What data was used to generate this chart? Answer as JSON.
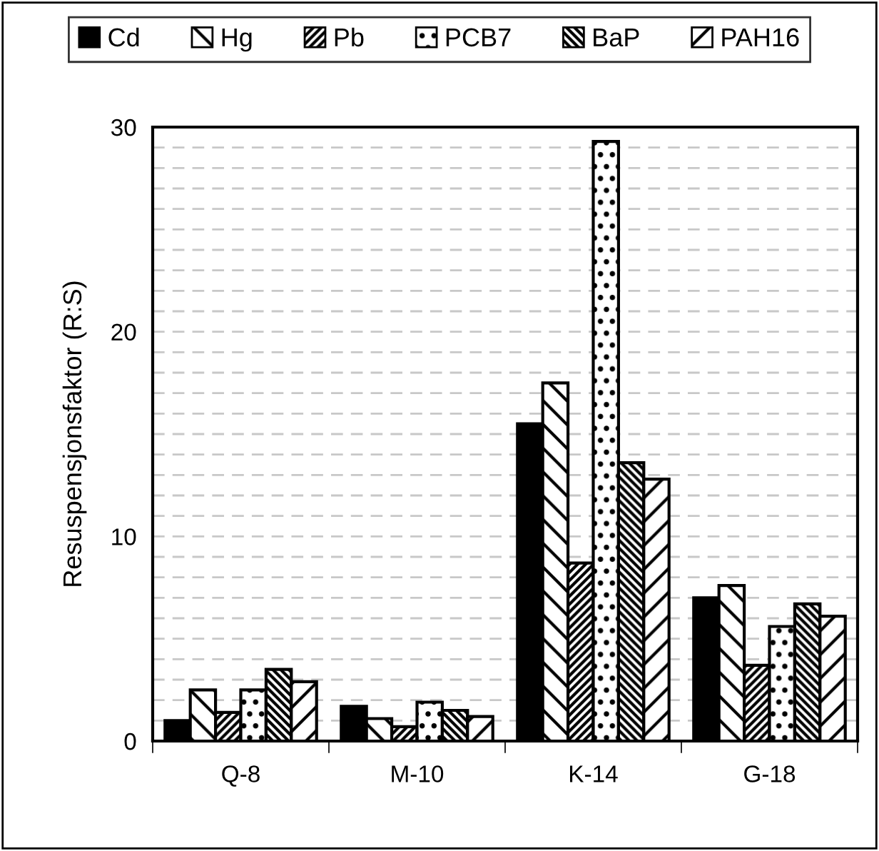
{
  "chart_data": {
    "type": "bar",
    "ylabel": "Resuspensjonsfaktor (R:S)",
    "categories": [
      "Q-8",
      "M-10",
      "K-14",
      "G-18"
    ],
    "series": [
      {
        "name": "Cd",
        "color": "#000000",
        "values": [
          1.0,
          1.7,
          15.5,
          7.0
        ]
      },
      {
        "name": "Hg",
        "color": "#000000",
        "values": [
          2.5,
          1.1,
          17.5,
          7.6
        ]
      },
      {
        "name": "Pb",
        "color": "#000000",
        "values": [
          1.4,
          0.7,
          8.7,
          3.7
        ]
      },
      {
        "name": "PCB7",
        "color": "#000000",
        "values": [
          2.5,
          1.9,
          29.3,
          5.6
        ]
      },
      {
        "name": "BaP",
        "color": "#000000",
        "values": [
          3.5,
          1.5,
          13.6,
          6.7
        ]
      },
      {
        "name": "PAH16",
        "color": "#000000",
        "values": [
          2.9,
          1.2,
          12.8,
          6.1
        ]
      }
    ],
    "ylim": [
      0,
      30
    ],
    "yticks": [
      0,
      {
        "value": 1,
        "label": null
      },
      {
        "value": 2,
        "label": null
      },
      {
        "value": 3,
        "label": null
      },
      {
        "value": 4,
        "label": null
      },
      {
        "value": 5,
        "label": null
      },
      {
        "value": 6,
        "label": null
      },
      {
        "value": 7,
        "label": null
      },
      {
        "value": 8,
        "label": null
      },
      {
        "value": 9,
        "label": null
      },
      10,
      {
        "value": 11,
        "label": null
      },
      {
        "value": 12,
        "label": null
      },
      {
        "value": 13,
        "label": null
      },
      {
        "value": 14,
        "label": null
      },
      {
        "value": 15,
        "label": null
      },
      {
        "value": 16,
        "label": null
      },
      {
        "value": 17,
        "label": null
      },
      {
        "value": 18,
        "label": null
      },
      {
        "value": 19,
        "label": null
      },
      20,
      {
        "value": 21,
        "label": null
      },
      {
        "value": 22,
        "label": null
      },
      {
        "value": 23,
        "label": null
      },
      {
        "value": 24,
        "label": null
      },
      {
        "value": 25,
        "label": null
      },
      {
        "value": 26,
        "label": null
      },
      {
        "value": 27,
        "label": null
      },
      {
        "value": 28,
        "label": null
      },
      {
        "value": 29,
        "label": null
      },
      30
    ],
    "grid": "y",
    "legend": "top"
  }
}
